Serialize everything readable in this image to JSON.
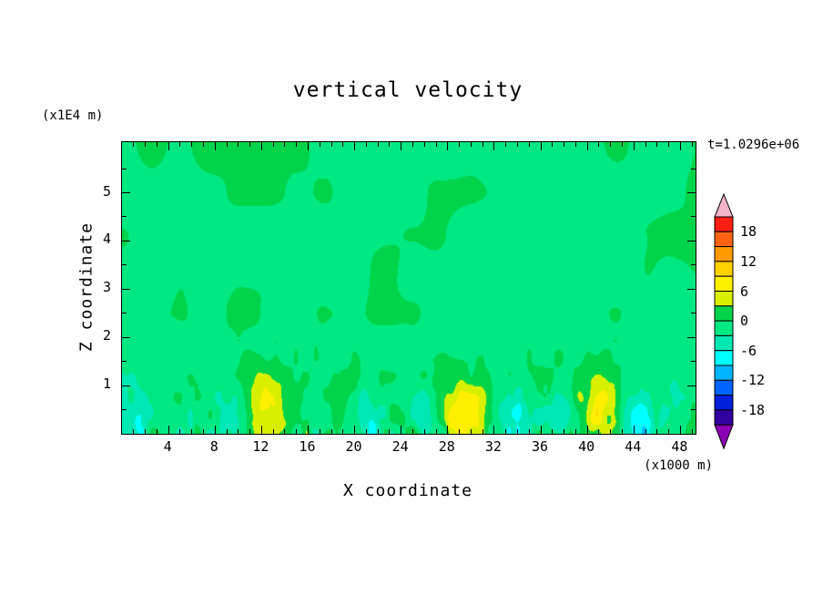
{
  "title": "vertical velocity",
  "time_label": "t=1.0296e+06",
  "y_unit_label": "(x1E4 m)",
  "x_unit_label": "(x1000 m)",
  "xlabel": "X coordinate",
  "ylabel": "Z coordinate",
  "chart_data": {
    "type": "heatmap",
    "subtype": "filled-contour",
    "variable": "vertical velocity",
    "time_annotation": "t=1.0296e+06",
    "xlabel": "X coordinate",
    "ylabel": "Z coordinate",
    "x_units": "(x1000 m)",
    "z_units": "(x1E4 m)",
    "xlim": [
      0,
      49.3
    ],
    "zlim": [
      0,
      6.05
    ],
    "x_ticks": [
      4,
      8,
      12,
      16,
      20,
      24,
      28,
      32,
      36,
      40,
      44,
      48
    ],
    "x_minor_step": 1,
    "z_ticks": [
      1,
      2,
      3,
      4,
      5
    ],
    "z_minor_step": 0.5,
    "grid": false,
    "legend_position": "right-colorbar",
    "colorbar": {
      "label_values": [
        18,
        12,
        6,
        0,
        -6,
        -12,
        -18
      ],
      "level_step": 3,
      "max_level": 21,
      "min_level": -21,
      "box_colors_top_to_bottom": [
        "#ff1e14",
        "#ff6414",
        "#ff9b00",
        "#ffd200",
        "#fff000",
        "#d8f000",
        "#00d44a",
        "#00e882",
        "#00e8b4",
        "#00ffff",
        "#00b4ff",
        "#0064ff",
        "#0020dc",
        "#3200a0"
      ],
      "arrow_top_color": "#f2b4c8",
      "arrow_bottom_color": "#8c00b4"
    },
    "field_model": {
      "description": "mostly near-zero field (two green bands), turbulent speckle below z~2, updraft maxima ~+8 near surface at x~12, 29.5, 41, downdraft minima ~-7 near surface",
      "background_offset": -1.0,
      "noise_layers": [
        {
          "amp": 1.5,
          "fx": 0.08,
          "fz": 0.8,
          "seed": 7
        },
        {
          "amp": 0.8,
          "fx": 0.4,
          "fz": 1.2,
          "seed": 19
        },
        {
          "amp": 3.0,
          "fx": 1.2,
          "fz": 2.5,
          "seed": 31,
          "bottom_ramp": 2.3
        },
        {
          "amp": 1.4,
          "fx": 2.2,
          "fz": 4.0,
          "seed": 47,
          "bottom_ramp": 1.5
        }
      ],
      "updraft_hotspots": [
        {
          "x": 12,
          "z": 0.45,
          "amp": 8.2,
          "sx": 1.6,
          "sz": 0.55
        },
        {
          "x": 29.5,
          "z": 0.35,
          "amp": 8.8,
          "sx": 1.8,
          "sz": 0.5
        },
        {
          "x": 41,
          "z": 0.55,
          "amp": 7.4,
          "sx": 1.3,
          "sz": 0.5
        }
      ],
      "downdraft_spots": [
        {
          "x": 1.5,
          "z": 0.3,
          "amp": -6,
          "sx": 0.8,
          "sz": 0.35
        },
        {
          "x": 9.5,
          "z": 0.3,
          "amp": -7,
          "sx": 1.2,
          "sz": 0.4
        },
        {
          "x": 21,
          "z": 0.25,
          "amp": -6,
          "sx": 1.0,
          "sz": 0.35
        },
        {
          "x": 26.5,
          "z": 0.3,
          "amp": -6.5,
          "sx": 1.0,
          "sz": 0.4
        },
        {
          "x": 33.5,
          "z": 0.35,
          "amp": -7,
          "sx": 1.4,
          "sz": 0.45
        },
        {
          "x": 37.5,
          "z": 0.25,
          "amp": -5.5,
          "sx": 0.9,
          "sz": 0.35
        },
        {
          "x": 44.5,
          "z": 0.3,
          "amp": -6.5,
          "sx": 1.2,
          "sz": 0.4
        }
      ]
    }
  }
}
